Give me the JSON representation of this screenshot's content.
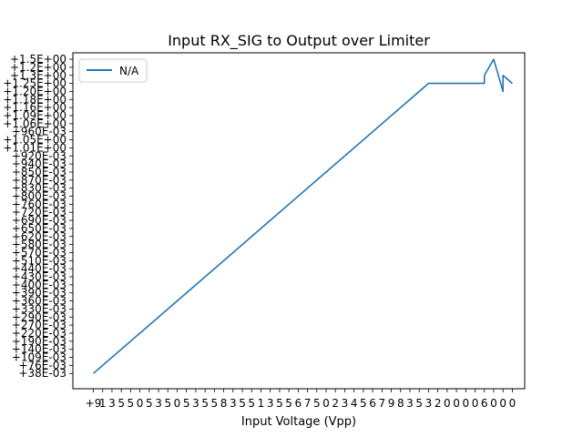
{
  "chart_data": {
    "type": "line",
    "title": "Input RX_SIG to Output over Limiter",
    "xlabel": "Input Voltage (Vpp)",
    "ylabel": "",
    "legend": {
      "placement": "top-left",
      "entries": [
        "N/A"
      ]
    },
    "grid": false,
    "line_color": "#1f77b4",
    "y_categories": [
      "+38E-03",
      "+76E-03",
      "+109E-03",
      "+140E-03",
      "+190E-03",
      "+220E-03",
      "+270E-03",
      "+290E-03",
      "+330E-03",
      "+360E-03",
      "+390E-03",
      "+400E-03",
      "+430E-03",
      "+440E-03",
      "+510E-03",
      "+570E-03",
      "+580E-03",
      "+620E-03",
      "+650E-03",
      "+690E-03",
      "+720E-03",
      "+760E-03",
      "+800E-03",
      "+830E-03",
      "+870E-03",
      "+850E-03",
      "+940E-03",
      "+920E-03",
      "+1.01E+00",
      "+1.05E+00",
      "+960E-03",
      "+1.06E+00",
      "+1.09E+00",
      "+1.16E+00",
      "+1.18E+00",
      "+1.20E+00",
      "+1.25E+00",
      "+1.3E+00",
      "+1.2E+00",
      "+1.5E+00"
    ],
    "series": [
      {
        "name": "N/A",
        "x_index": [
          0,
          36,
          42,
          42,
          43,
          44,
          44,
          45
        ],
        "y_index": [
          0,
          36,
          36,
          37,
          39,
          35,
          37,
          36
        ]
      }
    ],
    "x_tick_count": 46,
    "x_tick_labels": [
      "+9",
      "1",
      "3",
      "5",
      "5",
      "0",
      "5",
      "3",
      "5",
      "0",
      "5",
      "3",
      "5",
      "5",
      "8",
      "3",
      "5",
      "5",
      "1",
      "3",
      "5",
      "5",
      "6",
      "7",
      "5",
      "0",
      "2",
      "3",
      "4",
      "5",
      "6",
      "7",
      "9",
      "8",
      "3",
      "5",
      "3",
      "2",
      "0",
      "0",
      "0",
      "0",
      "6",
      "0",
      "0",
      "0"
    ]
  }
}
